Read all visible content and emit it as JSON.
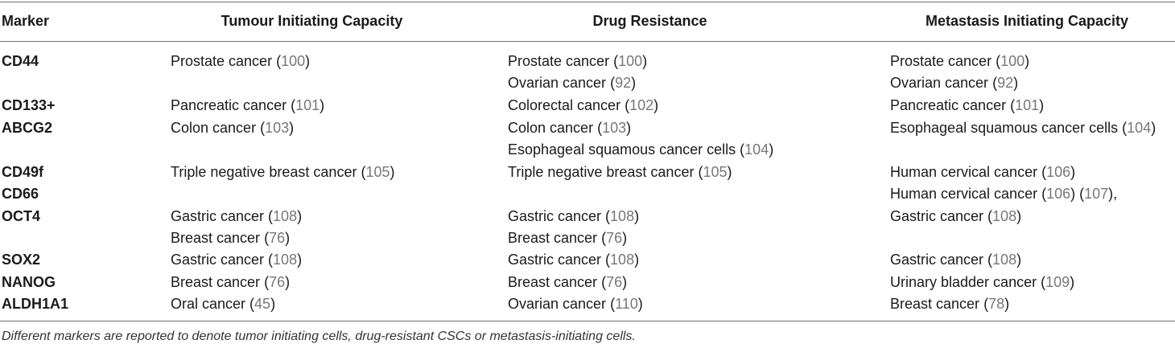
{
  "table": {
    "headers": {
      "marker": "Marker",
      "tumour": "Tumour Initiating Capacity",
      "drug": "Drug Resistance",
      "metastasis": "Metastasis Initiating Capacity"
    },
    "rows": [
      {
        "marker": "CD44",
        "tumour": [
          {
            "text": "Prostate cancer",
            "ref": "100"
          }
        ],
        "drug": [
          {
            "text": "Prostate cancer",
            "ref": "100"
          },
          {
            "text": "Ovarian cancer",
            "ref": "92"
          }
        ],
        "metastasis": [
          {
            "text": "Prostate cancer",
            "ref": "100"
          },
          {
            "text": "Ovarian cancer",
            "ref": "92"
          }
        ]
      },
      {
        "marker": "CD133+",
        "tumour": [
          {
            "text": "Pancreatic cancer",
            "ref": "101"
          }
        ],
        "drug": [
          {
            "text": "Colorectal cancer",
            "ref": "102"
          }
        ],
        "metastasis": [
          {
            "text": "Pancreatic cancer",
            "ref": "101"
          }
        ]
      },
      {
        "marker": "ABCG2",
        "tumour": [
          {
            "text": "Colon cancer",
            "ref": "103"
          }
        ],
        "drug": [
          {
            "text": "Colon cancer",
            "ref": "103"
          },
          {
            "text": "Esophageal squamous cancer cells",
            "ref": "104"
          }
        ],
        "metastasis": [
          {
            "text": "Esophageal squamous cancer cells",
            "ref": "104"
          }
        ]
      },
      {
        "marker": "CD49f",
        "tumour": [
          {
            "text": "Triple negative breast cancer",
            "ref": "105"
          }
        ],
        "drug": [
          {
            "text": "Triple negative breast cancer",
            "ref": "105"
          }
        ],
        "metastasis": [
          {
            "text": "Human cervical cancer",
            "ref": "106"
          }
        ]
      },
      {
        "marker": "CD66",
        "tumour": [],
        "drug": [],
        "metastasis": [
          {
            "text": "Human cervical cancer",
            "ref": "106",
            "ref2": "107",
            "suffix": ","
          }
        ]
      },
      {
        "marker": "OCT4",
        "tumour": [
          {
            "text": "Gastric cancer",
            "ref": "108"
          },
          {
            "text": "Breast cancer",
            "ref": "76"
          }
        ],
        "drug": [
          {
            "text": "Gastric cancer",
            "ref": "108"
          },
          {
            "text": "Breast cancer",
            "ref": "76"
          }
        ],
        "metastasis": [
          {
            "text": "Gastric cancer",
            "ref": "108"
          }
        ]
      },
      {
        "marker": "SOX2",
        "tumour": [
          {
            "text": "Gastric cancer",
            "ref": "108"
          }
        ],
        "drug": [
          {
            "text": "Gastric cancer",
            "ref": "108"
          }
        ],
        "metastasis": [
          {
            "text": "Gastric cancer",
            "ref": "108"
          }
        ]
      },
      {
        "marker": "NANOG",
        "tumour": [
          {
            "text": "Breast cancer",
            "ref": "76"
          }
        ],
        "drug": [
          {
            "text": "Breast cancer",
            "ref": "76"
          }
        ],
        "metastasis": [
          {
            "text": "Urinary bladder cancer",
            "ref": "109"
          }
        ]
      },
      {
        "marker": "ALDH1A1",
        "tumour": [
          {
            "text": "Oral cancer",
            "ref": "45"
          }
        ],
        "drug": [
          {
            "text": "Ovarian cancer",
            "ref": "110"
          }
        ],
        "metastasis": [
          {
            "text": "Breast cancer",
            "ref": "78"
          }
        ]
      }
    ]
  },
  "caption": "Different markers are reported to denote tumor initiating cells, drug-resistant CSCs or metastasis-initiating cells.",
  "colors": {
    "reference_link": "#777777",
    "text": "#1a1a1a",
    "rule": "#6e6e6e"
  }
}
